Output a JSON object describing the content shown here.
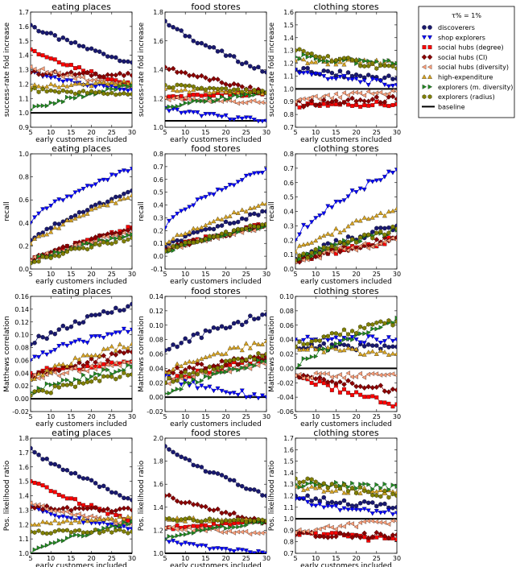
{
  "chart_data": {
    "type": "line",
    "columns": [
      "eating places",
      "food stores",
      "clothing stores"
    ],
    "x": {
      "label": "early customers included",
      "ticks": [
        5,
        10,
        15,
        20,
        25,
        30
      ],
      "range": [
        5,
        30
      ]
    },
    "legend": {
      "title": "τ% = 1%",
      "placement": "right of top row",
      "entries": [
        {
          "name": "discoverers",
          "color": "#191970",
          "marker": "circle"
        },
        {
          "name": "shop explorers",
          "color": "#0000ff",
          "marker": "triangle-down"
        },
        {
          "name": "social hubs (degree)",
          "color": "#ff0000",
          "marker": "square"
        },
        {
          "name": "social hubs (CI)",
          "color": "#8b0000",
          "marker": "diamond"
        },
        {
          "name": "social hubs (diversity)",
          "color": "#ffa07a",
          "marker": "triangle-left"
        },
        {
          "name": "high-expenditure",
          "color": "#daa520",
          "marker": "triangle-up"
        },
        {
          "name": "explorers (m. diversity)",
          "color": "#228b22",
          "marker": "triangle-right"
        },
        {
          "name": "explorers (radius)",
          "color": "#808000",
          "marker": "hexagon"
        },
        {
          "name": "baseline",
          "color": "#000000",
          "marker": "line"
        }
      ]
    },
    "rows": [
      {
        "ylabel": "success-rate fold increase",
        "baseline": 1.0,
        "panels": [
          {
            "title": "eating places",
            "ylim": [
              0.9,
              1.7
            ],
            "yticks": [
              "0.9",
              "1.0",
              "1.1",
              "1.2",
              "1.3",
              "1.4",
              "1.5",
              "1.6",
              "1.7"
            ],
            "series": [
              [
                1.61,
                1.35
              ],
              [
                1.28,
                1.16
              ],
              [
                1.44,
                1.19
              ],
              [
                1.28,
                1.26
              ],
              [
                1.32,
                1.18
              ],
              [
                1.18,
                1.21
              ],
              [
                1.02,
                1.19
              ],
              [
                1.16,
                1.13
              ]
            ]
          },
          {
            "title": "food stores",
            "ylim": [
              0.95,
              1.85
            ],
            "yticks": [
              "1.0",
              "1.2",
              "1.4",
              "1.6",
              "1.8"
            ],
            "series": [
              [
                1.78,
                1.38
              ],
              [
                1.1,
                1.0
              ],
              [
                1.18,
                1.22
              ],
              [
                1.42,
                1.22
              ],
              [
                1.18,
                1.14
              ],
              [
                1.25,
                1.22
              ],
              [
                1.1,
                1.22
              ],
              [
                1.28,
                1.22
              ]
            ]
          },
          {
            "title": "clothing stores",
            "ylim": [
              0.7,
              1.6
            ],
            "yticks": [
              "0.7",
              "0.8",
              "0.9",
              "1.0",
              "1.1",
              "1.2",
              "1.3",
              "1.4",
              "1.5",
              "1.6"
            ],
            "series": [
              [
                1.15,
                1.08
              ],
              [
                1.15,
                1.03
              ],
              [
                0.88,
                0.88
              ],
              [
                0.88,
                0.92
              ],
              [
                0.9,
                0.98
              ],
              [
                1.22,
                1.2
              ],
              [
                1.25,
                1.2
              ],
              [
                1.3,
                1.16
              ]
            ]
          }
        ]
      },
      {
        "ylabel": "recall",
        "baseline": null,
        "panels": [
          {
            "title": "eating places",
            "ylim": [
              0.0,
              1.0
            ],
            "yticks": [
              "0.0",
              "0.2",
              "0.4",
              "0.6",
              "0.8",
              "1.0"
            ],
            "series": [
              [
                0.25,
                0.68
              ],
              [
                0.4,
                0.87
              ],
              [
                0.07,
                0.36
              ],
              [
                0.08,
                0.35
              ],
              [
                0.07,
                0.32
              ],
              [
                0.22,
                0.64
              ],
              [
                0.06,
                0.3
              ],
              [
                0.05,
                0.27
              ]
            ]
          },
          {
            "title": "food stores",
            "ylim": [
              -0.1,
              0.8
            ],
            "yticks": [
              "-0.1",
              "0.0",
              "0.1",
              "0.2",
              "0.3",
              "0.4",
              "0.5",
              "0.6",
              "0.7",
              "0.8"
            ],
            "series": [
              [
                0.07,
                0.35
              ],
              [
                0.22,
                0.68
              ],
              [
                0.05,
                0.25
              ],
              [
                0.05,
                0.24
              ],
              [
                0.04,
                0.23
              ],
              [
                0.1,
                0.41
              ],
              [
                0.03,
                0.24
              ],
              [
                0.04,
                0.25
              ]
            ]
          },
          {
            "title": "clothing stores",
            "ylim": [
              0.0,
              0.8
            ],
            "yticks": [
              "0.0",
              "0.1",
              "0.2",
              "0.3",
              "0.4",
              "0.5",
              "0.6",
              "0.7",
              "0.8"
            ],
            "series": [
              [
                0.07,
                0.3
              ],
              [
                0.2,
                0.69
              ],
              [
                0.05,
                0.21
              ],
              [
                0.05,
                0.22
              ],
              [
                0.05,
                0.2
              ],
              [
                0.12,
                0.42
              ],
              [
                0.06,
                0.27
              ],
              [
                0.06,
                0.28
              ]
            ]
          }
        ]
      },
      {
        "ylabel": "Matthews correlation",
        "baseline": 0.0,
        "panels": [
          {
            "title": "eating places",
            "ylim": [
              -0.02,
              0.16
            ],
            "yticks": [
              "-0.02",
              "0.00",
              "0.02",
              "0.04",
              "0.06",
              "0.08",
              "0.10",
              "0.12",
              "0.14",
              "0.16"
            ],
            "series": [
              [
                0.085,
                0.148
              ],
              [
                0.06,
                0.108
              ],
              [
                0.04,
                0.058
              ],
              [
                0.035,
                0.073
              ],
              [
                0.03,
                0.058
              ],
              [
                0.03,
                0.086
              ],
              [
                0.01,
                0.05
              ],
              [
                0.005,
                0.038
              ]
            ]
          },
          {
            "title": "food stores",
            "ylim": [
              -0.02,
              0.14
            ],
            "yticks": [
              "-0.02",
              "0.00",
              "0.02",
              "0.04",
              "0.06",
              "0.08",
              "0.10",
              "0.12",
              "0.14"
            ],
            "series": [
              [
                0.065,
                0.115
              ],
              [
                0.03,
                0.0
              ],
              [
                0.02,
                0.055
              ],
              [
                0.035,
                0.055
              ],
              [
                0.02,
                0.045
              ],
              [
                0.035,
                0.078
              ],
              [
                0.005,
                0.05
              ],
              [
                0.02,
                0.06
              ]
            ]
          },
          {
            "title": "clothing stores",
            "ylim": [
              -0.06,
              0.1
            ],
            "yticks": [
              "-0.06",
              "-0.04",
              "-0.02",
              "0.00",
              "0.02",
              "0.04",
              "0.06",
              "0.08",
              "0.10"
            ],
            "series": [
              [
                0.03,
                0.03
              ],
              [
                0.04,
                0.04
              ],
              [
                -0.01,
                -0.05
              ],
              [
                -0.01,
                -0.03
              ],
              [
                -0.01,
                -0.01
              ],
              [
                0.03,
                0.02
              ],
              [
                0.0,
                0.07
              ],
              [
                0.03,
                0.065
              ]
            ]
          }
        ]
      },
      {
        "ylabel": "Pos. likelihood ratio",
        "baseline": 1.0,
        "panels": [
          {
            "title": "eating places",
            "ylim": [
              1.0,
              1.8
            ],
            "yticks": [
              "1.0",
              "1.1",
              "1.2",
              "1.3",
              "1.4",
              "1.5",
              "1.6",
              "1.7",
              "1.8"
            ],
            "series": [
              [
                1.73,
                1.37
              ],
              [
                1.32,
                1.17
              ],
              [
                1.5,
                1.22
              ],
              [
                1.32,
                1.3
              ],
              [
                1.35,
                1.2
              ],
              [
                1.2,
                1.25
              ],
              [
                1.0,
                1.22
              ],
              [
                1.15,
                1.15
              ]
            ]
          },
          {
            "title": "food stores",
            "ylim": [
              1.0,
              2.0
            ],
            "yticks": [
              "1.0",
              "1.2",
              "1.4",
              "1.6",
              "1.8",
              "2.0"
            ],
            "series": [
              [
                1.93,
                1.5
              ],
              [
                1.12,
                1.0
              ],
              [
                1.22,
                1.27
              ],
              [
                1.5,
                1.27
              ],
              [
                1.22,
                1.18
              ],
              [
                1.3,
                1.28
              ],
              [
                1.12,
                1.28
              ],
              [
                1.3,
                1.28
              ]
            ]
          },
          {
            "title": "clothing stores",
            "ylim": [
              0.7,
              1.7
            ],
            "yticks": [
              "0.7",
              "0.8",
              "0.9",
              "1.0",
              "1.1",
              "1.2",
              "1.3",
              "1.4",
              "1.5",
              "1.6",
              "1.7"
            ],
            "series": [
              [
                1.2,
                1.1
              ],
              [
                1.17,
                1.05
              ],
              [
                0.88,
                0.82
              ],
              [
                0.86,
                0.86
              ],
              [
                0.88,
                0.98
              ],
              [
                1.28,
                1.23
              ],
              [
                1.3,
                1.28
              ],
              [
                1.35,
                1.2
              ]
            ]
          }
        ]
      }
    ]
  }
}
